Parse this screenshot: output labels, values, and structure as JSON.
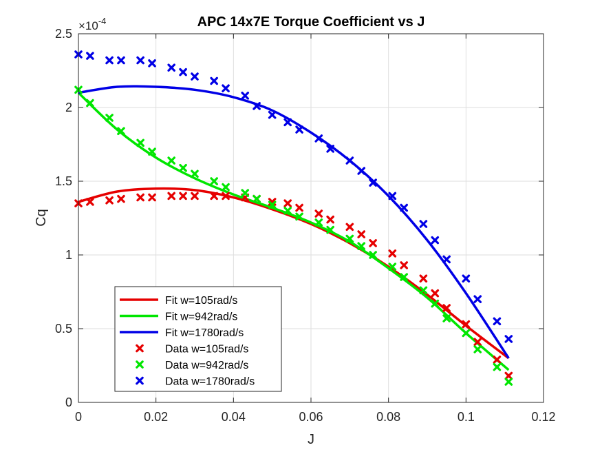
{
  "chart_data": {
    "type": "line",
    "title": "APC 14x7E Torque Coefficient vs J",
    "xlabel": "J",
    "ylabel": "Cq",
    "xlim": [
      0,
      0.12
    ],
    "ylim": [
      0,
      2.5
    ],
    "y_exponent_label": "×10",
    "y_exponent_power": "-4",
    "x_ticks": [
      "0",
      "0.02",
      "0.04",
      "0.06",
      "0.08",
      "0.1",
      "0.12"
    ],
    "y_ticks": [
      "0",
      "0.5",
      "1",
      "1.5",
      "2",
      "2.5"
    ],
    "grid": true,
    "legend_position": "bottom-left",
    "series": [
      {
        "name": "Fit w=105rad/s",
        "kind": "line",
        "color": "#e60000",
        "x": [
          0,
          0.01,
          0.02,
          0.03,
          0.04,
          0.05,
          0.06,
          0.07,
          0.08,
          0.09,
          0.1,
          0.111
        ],
        "y": [
          1.36,
          1.43,
          1.45,
          1.44,
          1.39,
          1.31,
          1.21,
          1.08,
          0.92,
          0.73,
          0.52,
          0.3
        ]
      },
      {
        "name": "Fit w=942rad/s",
        "kind": "line",
        "color": "#00e600",
        "x": [
          0,
          0.01,
          0.02,
          0.03,
          0.04,
          0.05,
          0.06,
          0.07,
          0.08,
          0.09,
          0.1,
          0.111
        ],
        "y": [
          2.1,
          1.85,
          1.66,
          1.52,
          1.41,
          1.32,
          1.22,
          1.09,
          0.91,
          0.71,
          0.47,
          0.22
        ]
      },
      {
        "name": "Fit w=1780rad/s",
        "kind": "line",
        "color": "#0000e6",
        "x": [
          0,
          0.01,
          0.02,
          0.03,
          0.04,
          0.05,
          0.06,
          0.07,
          0.08,
          0.09,
          0.1,
          0.111
        ],
        "y": [
          2.1,
          2.14,
          2.14,
          2.12,
          2.07,
          1.98,
          1.83,
          1.64,
          1.4,
          1.1,
          0.74,
          0.3
        ]
      },
      {
        "name": "Data w=105rad/s",
        "kind": "marker",
        "color": "#e60000",
        "x": [
          0,
          0.003,
          0.008,
          0.011,
          0.016,
          0.019,
          0.024,
          0.027,
          0.03,
          0.035,
          0.038,
          0.043,
          0.046,
          0.05,
          0.054,
          0.057,
          0.062,
          0.065,
          0.07,
          0.073,
          0.076,
          0.081,
          0.084,
          0.089,
          0.092,
          0.095,
          0.1,
          0.103,
          0.108,
          0.111
        ],
        "y": [
          1.35,
          1.36,
          1.37,
          1.38,
          1.39,
          1.39,
          1.4,
          1.4,
          1.4,
          1.4,
          1.4,
          1.39,
          1.38,
          1.36,
          1.35,
          1.32,
          1.28,
          1.24,
          1.19,
          1.14,
          1.08,
          1.01,
          0.93,
          0.84,
          0.74,
          0.64,
          0.53,
          0.41,
          0.29,
          0.18
        ]
      },
      {
        "name": "Data w=942rad/s",
        "kind": "marker",
        "color": "#00e600",
        "x": [
          0,
          0.003,
          0.008,
          0.011,
          0.016,
          0.019,
          0.024,
          0.027,
          0.03,
          0.035,
          0.038,
          0.043,
          0.046,
          0.05,
          0.054,
          0.057,
          0.062,
          0.065,
          0.07,
          0.073,
          0.076,
          0.081,
          0.084,
          0.089,
          0.092,
          0.095,
          0.1,
          0.103,
          0.108,
          0.111
        ],
        "y": [
          2.12,
          2.03,
          1.93,
          1.84,
          1.76,
          1.7,
          1.64,
          1.59,
          1.55,
          1.5,
          1.46,
          1.42,
          1.38,
          1.34,
          1.3,
          1.26,
          1.22,
          1.17,
          1.11,
          1.06,
          1.0,
          0.92,
          0.85,
          0.76,
          0.67,
          0.57,
          0.47,
          0.36,
          0.24,
          0.14
        ]
      },
      {
        "name": "Data w=1780rad/s",
        "kind": "marker",
        "color": "#0000e6",
        "x": [
          0,
          0.003,
          0.008,
          0.011,
          0.016,
          0.019,
          0.024,
          0.027,
          0.03,
          0.035,
          0.038,
          0.043,
          0.046,
          0.05,
          0.054,
          0.057,
          0.062,
          0.065,
          0.07,
          0.073,
          0.076,
          0.081,
          0.084,
          0.089,
          0.092,
          0.095,
          0.1,
          0.103,
          0.108,
          0.111
        ],
        "y": [
          2.36,
          2.35,
          2.32,
          2.32,
          2.32,
          2.3,
          2.27,
          2.24,
          2.21,
          2.18,
          2.13,
          2.08,
          2.01,
          1.95,
          1.9,
          1.85,
          1.79,
          1.72,
          1.64,
          1.57,
          1.49,
          1.4,
          1.32,
          1.21,
          1.1,
          0.97,
          0.84,
          0.7,
          0.55,
          0.43
        ]
      }
    ]
  }
}
